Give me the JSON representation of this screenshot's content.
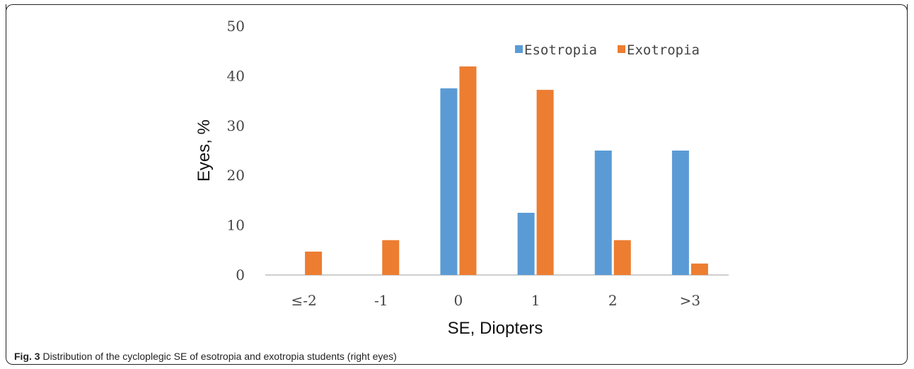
{
  "caption": {
    "label": "Fig. 3",
    "text": " Distribution of the cycloplegic SE of esotropia and exotropia students (right eyes)"
  },
  "chart_data": {
    "type": "bar",
    "title": "",
    "xlabel": "SE, Diopters",
    "ylabel": "Eyes, %",
    "ylim": [
      0,
      50
    ],
    "yticks": [
      "0",
      "10",
      "20",
      "30",
      "40",
      "50"
    ],
    "categories": [
      "≤-2",
      "-1",
      "0",
      "1",
      "2",
      ">3"
    ],
    "series": [
      {
        "name": "Esotropia",
        "color": "#5B9BD5",
        "values": [
          0,
          0,
          37.5,
          12.5,
          25,
          25
        ]
      },
      {
        "name": "Exotropia",
        "color": "#ED7D31",
        "values": [
          4.7,
          7.0,
          41.9,
          37.2,
          7.0,
          2.3
        ]
      }
    ],
    "legend": "top-right",
    "grid": false
  }
}
